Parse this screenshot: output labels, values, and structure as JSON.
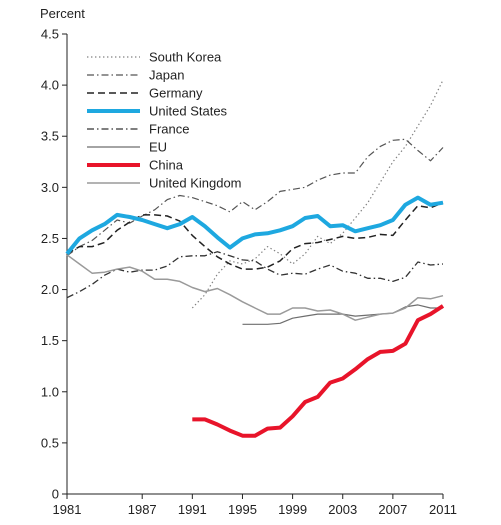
{
  "chart_data": {
    "type": "line",
    "ylabel": "Percent",
    "xlabel": "",
    "title": "",
    "xlim": [
      1981,
      2011
    ],
    "ylim": [
      0,
      4.5
    ],
    "x_ticks": [
      1981,
      1987,
      1991,
      1995,
      1999,
      2003,
      2007,
      2011
    ],
    "y_ticks": [
      0,
      0.5,
      1.0,
      1.5,
      2.0,
      2.5,
      3.0,
      3.5,
      4.0,
      4.5
    ],
    "y_tick_labels": [
      "0",
      "0.5",
      "1.0",
      "1.5",
      "2.0",
      "2.5",
      "3.0",
      "3.5",
      "4.0",
      "4.5"
    ],
    "grid": false,
    "legend_position": "top-left",
    "series": [
      {
        "name": "South Korea",
        "color": "#808080",
        "style": "dotted",
        "width": 1.2,
        "x": [
          1991,
          1992,
          1993,
          1994,
          1995,
          1996,
          1997,
          1998,
          1999,
          2000,
          2001,
          2002,
          2003,
          2004,
          2005,
          2006,
          2007,
          2008,
          2009,
          2010,
          2011
        ],
        "y": [
          1.82,
          1.95,
          2.15,
          2.28,
          2.25,
          2.3,
          2.42,
          2.35,
          2.25,
          2.35,
          2.52,
          2.45,
          2.55,
          2.7,
          2.85,
          3.05,
          3.25,
          3.4,
          3.6,
          3.8,
          4.05
        ]
      },
      {
        "name": "Japan",
        "color": "#555555",
        "style": "dashdot",
        "width": 1.2,
        "x": [
          1981,
          1982,
          1983,
          1984,
          1985,
          1986,
          1987,
          1988,
          1989,
          1990,
          1991,
          1992,
          1993,
          1994,
          1995,
          1996,
          1997,
          1998,
          1999,
          2000,
          2001,
          2002,
          2003,
          2004,
          2005,
          2006,
          2007,
          2008,
          2009,
          2010,
          2011
        ],
        "y": [
          2.33,
          2.42,
          2.48,
          2.58,
          2.68,
          2.65,
          2.72,
          2.78,
          2.88,
          2.92,
          2.9,
          2.86,
          2.82,
          2.76,
          2.86,
          2.78,
          2.86,
          2.96,
          2.98,
          3.0,
          3.07,
          3.12,
          3.14,
          3.14,
          3.3,
          3.4,
          3.46,
          3.47,
          3.36,
          3.26,
          3.39
        ]
      },
      {
        "name": "Germany",
        "color": "#222222",
        "style": "dashed",
        "width": 1.5,
        "x": [
          1981,
          1982,
          1983,
          1984,
          1985,
          1986,
          1987,
          1988,
          1989,
          1990,
          1991,
          1992,
          1993,
          1994,
          1995,
          1996,
          1997,
          1998,
          1999,
          2000,
          2001,
          2002,
          2003,
          2004,
          2005,
          2006,
          2007,
          2008,
          2009,
          2010,
          2011
        ],
        "y": [
          2.35,
          2.42,
          2.42,
          2.46,
          2.58,
          2.66,
          2.73,
          2.73,
          2.72,
          2.67,
          2.53,
          2.42,
          2.32,
          2.25,
          2.2,
          2.2,
          2.22,
          2.28,
          2.4,
          2.45,
          2.46,
          2.49,
          2.52,
          2.5,
          2.51,
          2.54,
          2.53,
          2.68,
          2.82,
          2.8,
          2.85
        ]
      },
      {
        "name": "United States",
        "color": "#1ea8e0",
        "style": "solid",
        "width": 4,
        "x": [
          1981,
          1982,
          1983,
          1984,
          1985,
          1986,
          1987,
          1988,
          1989,
          1990,
          1991,
          1992,
          1993,
          1994,
          1995,
          1996,
          1997,
          1998,
          1999,
          2000,
          2001,
          2002,
          2003,
          2004,
          2005,
          2006,
          2007,
          2008,
          2009,
          2010,
          2011
        ],
        "y": [
          2.35,
          2.5,
          2.58,
          2.64,
          2.73,
          2.71,
          2.68,
          2.64,
          2.6,
          2.64,
          2.71,
          2.62,
          2.51,
          2.41,
          2.5,
          2.54,
          2.55,
          2.58,
          2.62,
          2.7,
          2.72,
          2.62,
          2.63,
          2.57,
          2.6,
          2.63,
          2.68,
          2.83,
          2.9,
          2.83,
          2.85
        ]
      },
      {
        "name": "France",
        "color": "#333333",
        "style": "dashdot",
        "width": 1.3,
        "x": [
          1981,
          1982,
          1983,
          1984,
          1985,
          1986,
          1987,
          1988,
          1989,
          1990,
          1991,
          1992,
          1993,
          1994,
          1995,
          1996,
          1997,
          1998,
          1999,
          2000,
          2001,
          2002,
          2003,
          2004,
          2005,
          2006,
          2007,
          2008,
          2009,
          2010,
          2011
        ],
        "y": [
          1.92,
          1.98,
          2.05,
          2.14,
          2.2,
          2.17,
          2.19,
          2.19,
          2.23,
          2.32,
          2.33,
          2.33,
          2.37,
          2.33,
          2.29,
          2.28,
          2.2,
          2.14,
          2.16,
          2.15,
          2.2,
          2.24,
          2.18,
          2.16,
          2.11,
          2.11,
          2.08,
          2.12,
          2.27,
          2.24,
          2.25
        ]
      },
      {
        "name": "EU",
        "color": "#6e6e6e",
        "style": "solid",
        "width": 1.2,
        "x": [
          1995,
          1996,
          1997,
          1998,
          1999,
          2000,
          2001,
          2002,
          2003,
          2004,
          2005,
          2006,
          2007,
          2008,
          2009,
          2010,
          2011
        ],
        "y": [
          1.66,
          1.66,
          1.66,
          1.67,
          1.72,
          1.74,
          1.76,
          1.76,
          1.76,
          1.74,
          1.75,
          1.76,
          1.77,
          1.83,
          1.85,
          1.82,
          1.82
        ]
      },
      {
        "name": "China",
        "color": "#e8142a",
        "style": "solid",
        "width": 4,
        "x": [
          1991,
          1992,
          1993,
          1994,
          1995,
          1996,
          1997,
          1998,
          1999,
          2000,
          2001,
          2002,
          2003,
          2004,
          2005,
          2006,
          2007,
          2008,
          2009,
          2010,
          2011
        ],
        "y": [
          0.73,
          0.73,
          0.68,
          0.62,
          0.57,
          0.57,
          0.64,
          0.65,
          0.76,
          0.9,
          0.95,
          1.09,
          1.13,
          1.22,
          1.32,
          1.39,
          1.4,
          1.47,
          1.7,
          1.76,
          1.84
        ]
      },
      {
        "name": "United Kingdom",
        "color": "#9a9a9a",
        "style": "solid",
        "width": 1.5,
        "x": [
          1981,
          1982,
          1983,
          1984,
          1985,
          1986,
          1987,
          1988,
          1989,
          1990,
          1991,
          1992,
          1993,
          1994,
          1995,
          1996,
          1997,
          1998,
          1999,
          2000,
          2001,
          2002,
          2003,
          2004,
          2005,
          2006,
          2007,
          2008,
          2009,
          2010,
          2011
        ],
        "y": [
          2.34,
          2.25,
          2.16,
          2.17,
          2.2,
          2.22,
          2.18,
          2.1,
          2.1,
          2.08,
          2.02,
          1.98,
          2.01,
          1.95,
          1.88,
          1.82,
          1.76,
          1.76,
          1.82,
          1.82,
          1.79,
          1.8,
          1.76,
          1.7,
          1.73,
          1.76,
          1.77,
          1.82,
          1.92,
          1.91,
          1.94
        ]
      }
    ]
  }
}
